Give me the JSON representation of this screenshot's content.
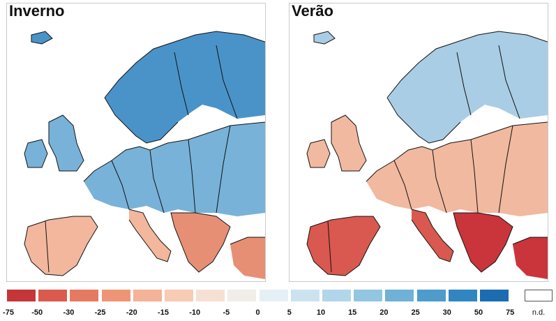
{
  "panels": [
    {
      "title": "Inverno",
      "season": "winter",
      "tint": {
        "north": "#4a93c9",
        "central": "#78b2d9",
        "south": "#f2b79d",
        "southeast": "#e68f75"
      }
    },
    {
      "title": "Verão",
      "season": "summer",
      "tint": {
        "north": "#a9cde4",
        "central": "#f1b9a0",
        "south": "#d9584f",
        "southeast": "#c9353a"
      }
    }
  ],
  "legend": {
    "ticks": [
      "-75",
      "-50",
      "-30",
      "-25",
      "-20",
      "-15",
      "-10",
      "-5",
      "0",
      "5",
      "10",
      "15",
      "20",
      "25",
      "30",
      "50",
      "75"
    ],
    "colors": [
      "#c53639",
      "#da5a4e",
      "#e47a61",
      "#ee9577",
      "#f4b298",
      "#f8cbb4",
      "#f6e0d4",
      "#f1eee9",
      "#e5f0f6",
      "#cce3ef",
      "#b2d6e9",
      "#93c6e1",
      "#6fb1d7",
      "#4d9ccb",
      "#3186c0",
      "#1b6cb0"
    ],
    "nodata_label": "n.d."
  }
}
